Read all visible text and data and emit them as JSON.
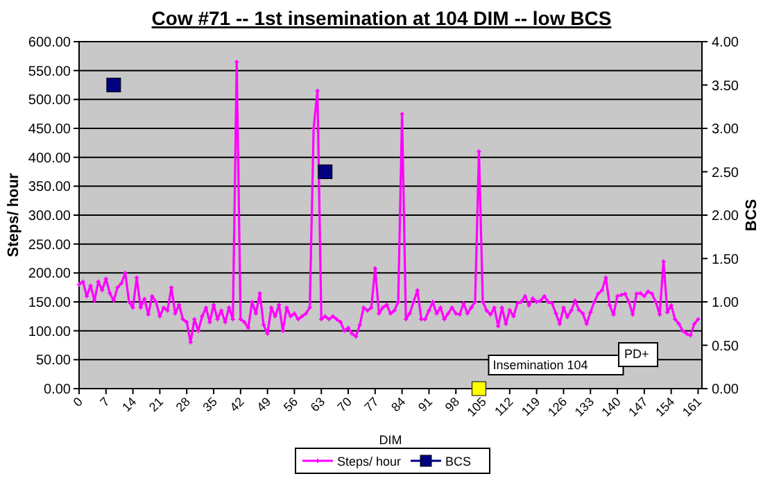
{
  "chart_data": {
    "type": "line",
    "title": "Cow #71 -- 1st insemination at 104 DIM -- low BCS",
    "xlabel": "DIM",
    "ylabel": "Steps/ hour",
    "y2label": "BCS",
    "xlim": [
      0,
      162
    ],
    "xticks": [
      0,
      7,
      14,
      21,
      28,
      35,
      42,
      49,
      56,
      63,
      70,
      77,
      84,
      91,
      98,
      105,
      112,
      119,
      126,
      133,
      140,
      147,
      154,
      161
    ],
    "ylim": [
      0,
      600
    ],
    "yticks": [
      {
        "value": 0,
        "label": "0.00"
      },
      {
        "value": 50,
        "label": "50.00"
      },
      {
        "value": 100,
        "label": "100.00"
      },
      {
        "value": 150,
        "label": "150.00"
      },
      {
        "value": 200,
        "label": "200.00"
      },
      {
        "value": 250,
        "label": "250.00"
      },
      {
        "value": 300,
        "label": "300.00"
      },
      {
        "value": 350,
        "label": "350.00"
      },
      {
        "value": 400,
        "label": "400.00"
      },
      {
        "value": 450,
        "label": "450.00"
      },
      {
        "value": 500,
        "label": "500.00"
      },
      {
        "value": 550,
        "label": "550.00"
      },
      {
        "value": 600,
        "label": "600.00"
      }
    ],
    "y2lim": [
      0,
      4
    ],
    "y2ticks": [
      {
        "value": 0,
        "label": "0.00"
      },
      {
        "value": 0.5,
        "label": "0.50"
      },
      {
        "value": 1,
        "label": "1.00"
      },
      {
        "value": 1.5,
        "label": "1.50"
      },
      {
        "value": 2,
        "label": "2.00"
      },
      {
        "value": 2.5,
        "label": "2.50"
      },
      {
        "value": 3,
        "label": "3.00"
      },
      {
        "value": 3.5,
        "label": "3.50"
      },
      {
        "value": 4,
        "label": "4.00"
      }
    ],
    "grid": "y",
    "legend": "bottom",
    "line_style": "solid",
    "series": [
      {
        "name": "Steps/ hour",
        "color": "#ff00ff",
        "marker": "cross",
        "x": [
          0,
          1,
          2,
          3,
          4,
          5,
          6,
          7,
          8,
          9,
          10,
          11,
          12,
          13,
          14,
          15,
          16,
          17,
          18,
          19,
          20,
          21,
          22,
          23,
          24,
          25,
          26,
          27,
          28,
          29,
          30,
          31,
          32,
          33,
          34,
          35,
          36,
          37,
          38,
          39,
          40,
          41,
          42,
          43,
          44,
          45,
          46,
          47,
          48,
          49,
          50,
          51,
          52,
          53,
          54,
          55,
          56,
          57,
          58,
          59,
          60,
          61,
          62,
          63,
          64,
          65,
          66,
          67,
          68,
          69,
          70,
          71,
          72,
          73,
          74,
          75,
          76,
          77,
          78,
          79,
          80,
          81,
          82,
          83,
          84,
          85,
          86,
          87,
          88,
          89,
          90,
          91,
          92,
          93,
          94,
          95,
          96,
          97,
          98,
          99,
          100,
          101,
          102,
          103,
          104,
          105,
          106,
          107,
          108,
          109,
          110,
          111,
          112,
          113,
          114,
          115,
          116,
          117,
          118,
          119,
          120,
          121,
          122,
          123,
          124,
          125,
          126,
          127,
          128,
          129,
          130,
          131,
          132,
          133,
          134,
          135,
          136,
          137,
          138,
          139,
          140,
          141,
          142,
          143,
          144,
          145,
          146,
          147,
          148,
          149,
          150,
          151,
          152,
          153,
          154,
          155,
          156,
          157,
          158,
          159,
          160,
          161
        ],
        "values": [
          180,
          185,
          160,
          178,
          152,
          185,
          170,
          190,
          165,
          152,
          175,
          182,
          200,
          150,
          140,
          192,
          140,
          155,
          128,
          160,
          150,
          125,
          140,
          135,
          175,
          130,
          145,
          120,
          115,
          80,
          120,
          100,
          125,
          140,
          115,
          145,
          120,
          135,
          115,
          140,
          120,
          565,
          120,
          115,
          105,
          150,
          130,
          165,
          110,
          95,
          140,
          125,
          145,
          100,
          140,
          125,
          130,
          120,
          125,
          130,
          140,
          450,
          515,
          120,
          125,
          120,
          125,
          120,
          115,
          100,
          105,
          95,
          90,
          110,
          140,
          135,
          140,
          208,
          130,
          140,
          145,
          130,
          135,
          150,
          475,
          120,
          130,
          150,
          170,
          120,
          120,
          135,
          150,
          130,
          140,
          120,
          130,
          140,
          130,
          128,
          148,
          130,
          140,
          150,
          410,
          150,
          135,
          128,
          140,
          108,
          140,
          112,
          136,
          125,
          148,
          150,
          160,
          144,
          156,
          150,
          152,
          160,
          150,
          148,
          130,
          112,
          140,
          124,
          135,
          152,
          136,
          130,
          112,
          132,
          150,
          164,
          170,
          192,
          144,
          128,
          160,
          162,
          164,
          150,
          128,
          164,
          165,
          160,
          168,
          164,
          150,
          128,
          220,
          132,
          144,
          120,
          112,
          100,
          95,
          92,
          112,
          120
        ]
      },
      {
        "name": "BCS",
        "color": "#000080",
        "type": "scatter",
        "marker": "square",
        "axis": "y2",
        "x": [
          9,
          64
        ],
        "values": [
          3.5,
          2.5
        ]
      },
      {
        "color": "#ffff00",
        "type": "scatter",
        "marker": "square",
        "axis": "y2",
        "x": [
          104
        ],
        "values": [
          0
        ]
      }
    ],
    "annotations": [
      {
        "text": "Insemination 104",
        "x": 104,
        "y": 0
      },
      "PD+"
    ]
  }
}
